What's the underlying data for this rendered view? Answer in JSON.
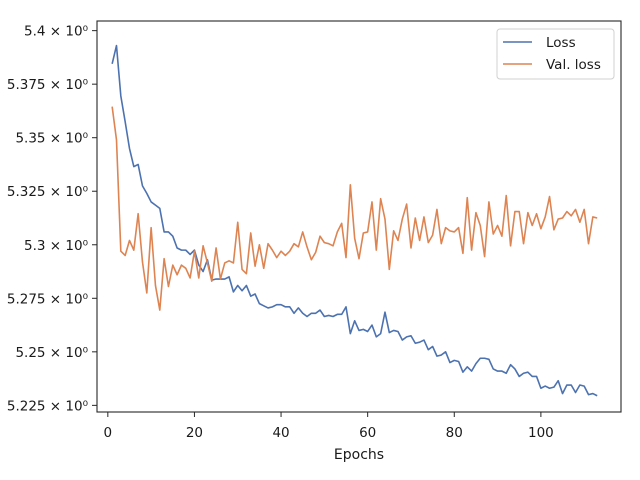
{
  "chart_data": {
    "type": "line",
    "xlabel": "Epochs",
    "ylabel": "",
    "xlim": [
      -2.5,
      118.5
    ],
    "ylim": [
      5.2219,
      5.4045
    ],
    "grid": false,
    "legend_position": "top-right",
    "xticks": [
      0,
      20,
      40,
      60,
      80,
      100
    ],
    "xtick_labels": [
      "0",
      "20",
      "40",
      "60",
      "80",
      "100"
    ],
    "yticks": [
      5.225,
      5.25,
      5.275,
      5.3,
      5.325,
      5.35,
      5.375,
      5.4
    ],
    "ytick_labels": [
      "5.225 × 10⁰",
      "5.25 × 10⁰",
      "5.275 × 10⁰",
      "5.3 × 10⁰",
      "5.325 × 10⁰",
      "5.35 × 10⁰",
      "5.375 × 10⁰",
      "5.4 × 10⁰"
    ],
    "x_start": 1,
    "series": [
      {
        "name": "Loss",
        "color": "#4c72b0",
        "values": [
          5.3845,
          5.393,
          5.3695,
          5.3575,
          5.345,
          5.3365,
          5.3375,
          5.3275,
          5.324,
          5.32,
          5.3185,
          5.317,
          5.306,
          5.306,
          5.304,
          5.2985,
          5.2975,
          5.2975,
          5.2955,
          5.2975,
          5.2905,
          5.2875,
          5.293,
          5.2835,
          5.284,
          5.284,
          5.284,
          5.285,
          5.278,
          5.281,
          5.2785,
          5.281,
          5.276,
          5.277,
          5.2725,
          5.2715,
          5.2705,
          5.271,
          5.272,
          5.272,
          5.271,
          5.271,
          5.268,
          5.2705,
          5.268,
          5.2665,
          5.268,
          5.268,
          5.2695,
          5.2665,
          5.267,
          5.2665,
          5.2675,
          5.2675,
          5.271,
          5.2585,
          5.2645,
          5.26,
          5.2605,
          5.2595,
          5.2625,
          5.257,
          5.2585,
          5.2685,
          5.259,
          5.26,
          5.2595,
          5.2555,
          5.257,
          5.2575,
          5.254,
          5.2545,
          5.2555,
          5.251,
          5.2525,
          5.248,
          5.2485,
          5.25,
          5.245,
          5.246,
          5.2455,
          5.2405,
          5.243,
          5.241,
          5.2445,
          5.247,
          5.247,
          5.2465,
          5.242,
          5.241,
          5.241,
          5.24,
          5.244,
          5.242,
          5.2385,
          5.24,
          5.2405,
          5.2385,
          5.2385,
          5.233,
          5.234,
          5.233,
          5.2335,
          5.2365,
          5.2305,
          5.2345,
          5.2345,
          5.231,
          5.2345,
          5.234,
          5.23,
          5.2305,
          5.2295
        ]
      },
      {
        "name": "Val. loss",
        "color": "#dd8452",
        "values": [
          5.3645,
          5.349,
          5.297,
          5.295,
          5.302,
          5.2975,
          5.3145,
          5.292,
          5.2775,
          5.308,
          5.281,
          5.2695,
          5.2935,
          5.2805,
          5.2905,
          5.286,
          5.2905,
          5.289,
          5.2845,
          5.297,
          5.2845,
          5.2995,
          5.2915,
          5.283,
          5.2985,
          5.284,
          5.2915,
          5.2925,
          5.2915,
          5.3105,
          5.2885,
          5.2865,
          5.3055,
          5.29,
          5.3,
          5.289,
          5.3005,
          5.2975,
          5.294,
          5.297,
          5.295,
          5.297,
          5.3005,
          5.299,
          5.306,
          5.299,
          5.293,
          5.2965,
          5.304,
          5.301,
          5.3005,
          5.2995,
          5.306,
          5.31,
          5.294,
          5.328,
          5.303,
          5.2935,
          5.3055,
          5.306,
          5.32,
          5.2975,
          5.3215,
          5.312,
          5.2885,
          5.3065,
          5.302,
          5.312,
          5.319,
          5.2985,
          5.3125,
          5.302,
          5.313,
          5.301,
          5.3045,
          5.3165,
          5.3005,
          5.308,
          5.3065,
          5.306,
          5.308,
          5.296,
          5.322,
          5.2975,
          5.315,
          5.309,
          5.2945,
          5.32,
          5.305,
          5.309,
          5.304,
          5.323,
          5.2995,
          5.3155,
          5.3155,
          5.3005,
          5.315,
          5.309,
          5.3145,
          5.3075,
          5.313,
          5.3225,
          5.307,
          5.312,
          5.3125,
          5.3155,
          5.3135,
          5.3165,
          5.3105,
          5.3165,
          5.3005,
          5.313,
          5.3125
        ]
      }
    ]
  }
}
